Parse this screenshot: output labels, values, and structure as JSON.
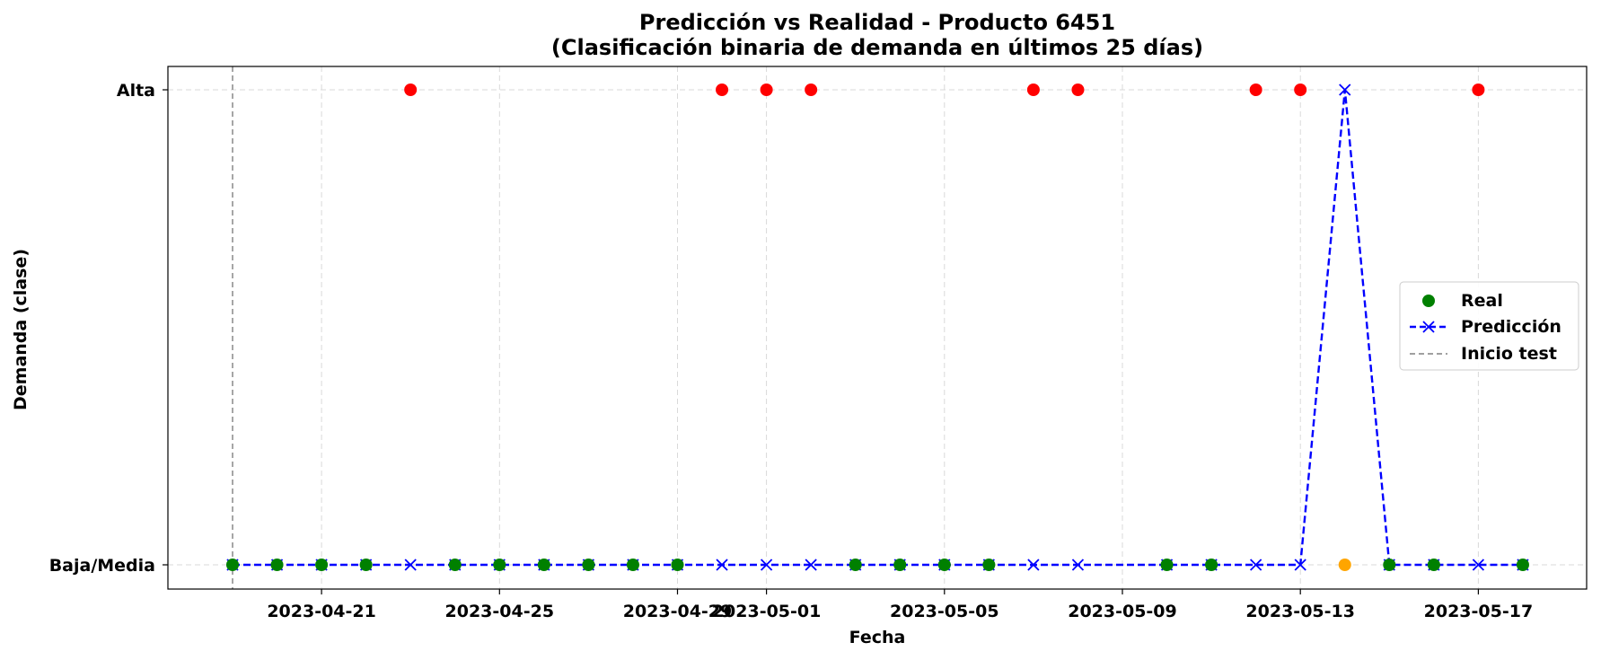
{
  "chart_data": {
    "type": "line",
    "title": "Predicción vs Realidad - Producto 6451",
    "subtitle": "(Clasificación binaria de demanda en últimos 25 días)",
    "xlabel": "Fecha",
    "ylabel": "Demanda (clase)",
    "x_start": "2023-04-19",
    "x_tick_labels": [
      "2023-04-21",
      "2023-04-25",
      "2023-04-29",
      "2023-05-01",
      "2023-05-05",
      "2023-05-09",
      "2023-05-13",
      "2023-05-17"
    ],
    "y_tick_labels": [
      "Baja/Media",
      "Alta"
    ],
    "xlim": [
      "2023-04-17",
      "2023-05-19"
    ],
    "ylim": [
      -0.05,
      1.05
    ],
    "grid": true,
    "legend_position": "center-right",
    "colors": {
      "real_low": "#008000",
      "real_high": "#ff0000",
      "real_mismatch": "#ffa500",
      "prediction": "#0000ff",
      "inicio_test": "#808080"
    },
    "series": [
      {
        "name": "Real",
        "kind": "scatter",
        "points": [
          {
            "x": "2023-04-19",
            "y": 0
          },
          {
            "x": "2023-04-20",
            "y": 0
          },
          {
            "x": "2023-04-21",
            "y": 0
          },
          {
            "x": "2023-04-22",
            "y": 0
          },
          {
            "x": "2023-04-23",
            "y": 1
          },
          {
            "x": "2023-04-24",
            "y": 0
          },
          {
            "x": "2023-04-25",
            "y": 0
          },
          {
            "x": "2023-04-26",
            "y": 0
          },
          {
            "x": "2023-04-27",
            "y": 0
          },
          {
            "x": "2023-04-28",
            "y": 0
          },
          {
            "x": "2023-04-29",
            "y": 0
          },
          {
            "x": "2023-04-30",
            "y": 1
          },
          {
            "x": "2023-05-01",
            "y": 1
          },
          {
            "x": "2023-05-02",
            "y": 1
          },
          {
            "x": "2023-05-03",
            "y": 0
          },
          {
            "x": "2023-05-04",
            "y": 0
          },
          {
            "x": "2023-05-05",
            "y": 0
          },
          {
            "x": "2023-05-06",
            "y": 0
          },
          {
            "x": "2023-05-07",
            "y": 1
          },
          {
            "x": "2023-05-08",
            "y": 1
          },
          {
            "x": "2023-05-10",
            "y": 0
          },
          {
            "x": "2023-05-11",
            "y": 0
          },
          {
            "x": "2023-05-12",
            "y": 1
          },
          {
            "x": "2023-05-13",
            "y": 1
          },
          {
            "x": "2023-05-14",
            "y": 0,
            "mismatch": true
          },
          {
            "x": "2023-05-15",
            "y": 0
          },
          {
            "x": "2023-05-16",
            "y": 0
          },
          {
            "x": "2023-05-17",
            "y": 1
          },
          {
            "x": "2023-05-18",
            "y": 0
          }
        ]
      },
      {
        "name": "Predicción",
        "kind": "line",
        "points": [
          {
            "x": "2023-04-19",
            "y": 0
          },
          {
            "x": "2023-04-20",
            "y": 0
          },
          {
            "x": "2023-04-21",
            "y": 0
          },
          {
            "x": "2023-04-22",
            "y": 0
          },
          {
            "x": "2023-04-23",
            "y": 0
          },
          {
            "x": "2023-04-24",
            "y": 0
          },
          {
            "x": "2023-04-25",
            "y": 0
          },
          {
            "x": "2023-04-26",
            "y": 0
          },
          {
            "x": "2023-04-27",
            "y": 0
          },
          {
            "x": "2023-04-28",
            "y": 0
          },
          {
            "x": "2023-04-29",
            "y": 0
          },
          {
            "x": "2023-04-30",
            "y": 0
          },
          {
            "x": "2023-05-01",
            "y": 0
          },
          {
            "x": "2023-05-02",
            "y": 0
          },
          {
            "x": "2023-05-03",
            "y": 0
          },
          {
            "x": "2023-05-04",
            "y": 0
          },
          {
            "x": "2023-05-05",
            "y": 0
          },
          {
            "x": "2023-05-06",
            "y": 0
          },
          {
            "x": "2023-05-07",
            "y": 0
          },
          {
            "x": "2023-05-08",
            "y": 0
          },
          {
            "x": "2023-05-10",
            "y": 0
          },
          {
            "x": "2023-05-11",
            "y": 0
          },
          {
            "x": "2023-05-12",
            "y": 0
          },
          {
            "x": "2023-05-13",
            "y": 0
          },
          {
            "x": "2023-05-14",
            "y": 1
          },
          {
            "x": "2023-05-15",
            "y": 0
          },
          {
            "x": "2023-05-16",
            "y": 0
          },
          {
            "x": "2023-05-17",
            "y": 0
          },
          {
            "x": "2023-05-18",
            "y": 0
          }
        ]
      },
      {
        "name": "Inicio test",
        "kind": "vline",
        "x": "2023-04-19"
      }
    ]
  }
}
